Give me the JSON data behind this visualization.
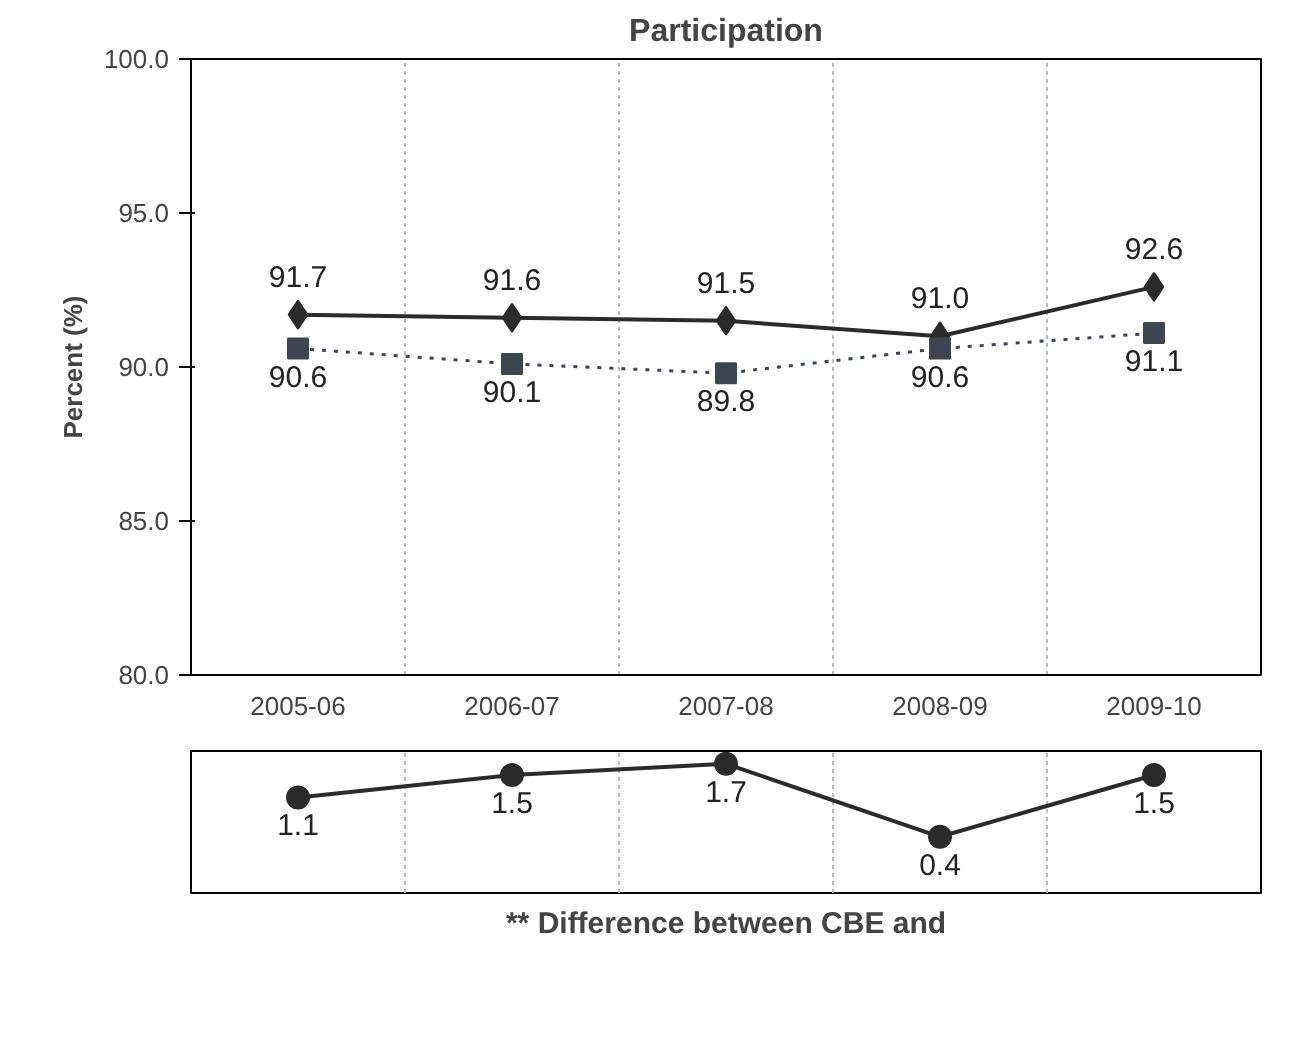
{
  "chart_data": [
    {
      "type": "line",
      "title": "Participation",
      "ylabel": "Percent (%)",
      "categories": [
        "2005-06",
        "2006-07",
        "2007-08",
        "2008-09",
        "2009-10"
      ],
      "series": [
        {
          "color": "#2b2b2b",
          "values": [
            91.7,
            91.6,
            91.5,
            91.0,
            92.6
          ],
          "value_labels": [
            "91.7",
            "91.6",
            "91.5",
            "91.0",
            "92.6"
          ],
          "marker": "diamond",
          "line_style": "solid"
        },
        {
          "color": "#3c4550",
          "values": [
            90.6,
            90.1,
            89.8,
            90.6,
            91.1
          ],
          "value_labels": [
            "90.6",
            "90.1",
            "89.8",
            "90.6",
            "91.1"
          ],
          "marker": "square",
          "line_style": "dotted"
        }
      ],
      "ylim": [
        80,
        100
      ],
      "yticks": [
        {
          "value": 80,
          "label": "80.0"
        },
        {
          "value": 85,
          "label": "85.0"
        },
        {
          "value": 90,
          "label": "90.0"
        },
        {
          "value": 95,
          "label": "95.0"
        },
        {
          "value": 100,
          "label": "100.0"
        }
      ],
      "grid": "x"
    },
    {
      "type": "line",
      "categories": [
        null,
        null,
        null,
        null,
        null
      ],
      "series": [
        {
          "color": "#2b2b2b",
          "values": [
            1.1,
            1.5,
            1.7,
            0.4,
            1.5
          ],
          "marker": "circle",
          "line_style": "solid"
        }
      ],
      "grid": "x",
      "data_labels": true,
      "tick_labels": false,
      "annotations": [
        "** Difference between CBE and"
      ]
    }
  ]
}
